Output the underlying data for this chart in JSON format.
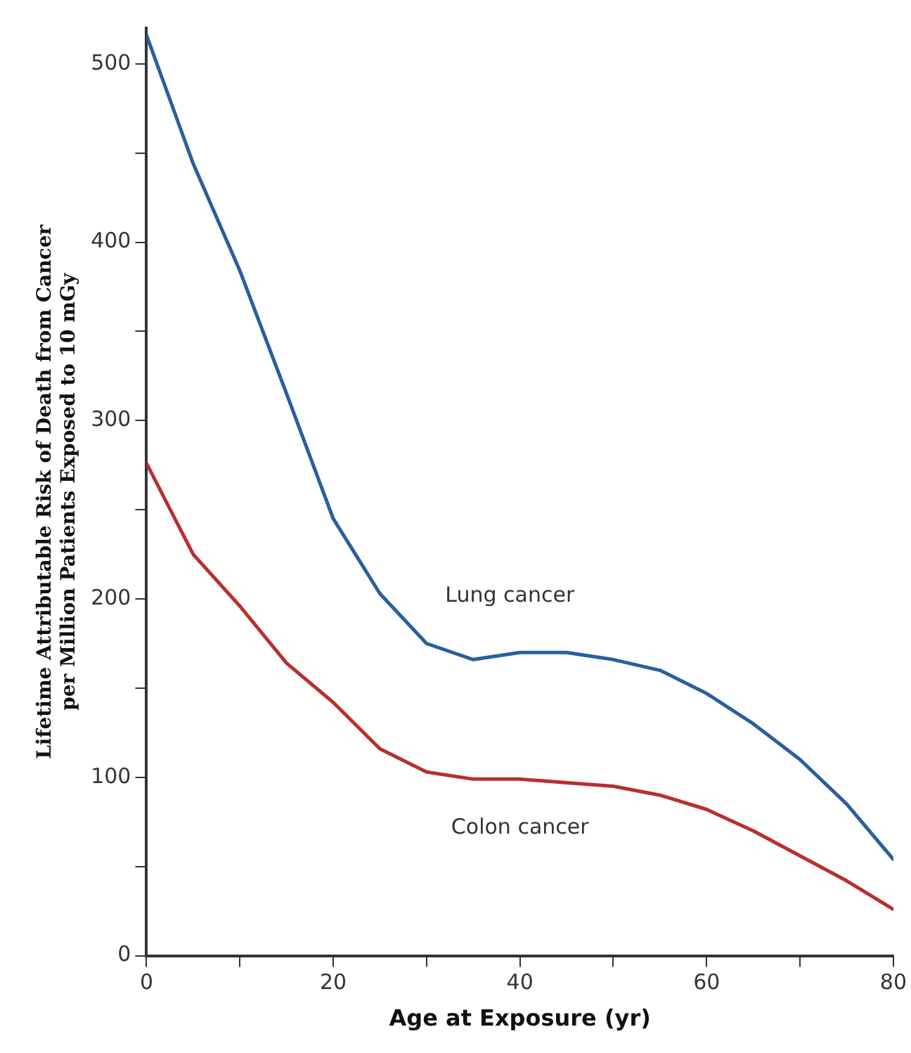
{
  "chart_data": {
    "type": "line",
    "xlabel": "Age at Exposure (yr)",
    "ylabel": "Lifetime Attributable Risk of Death from Cancer\nper Million Patients Exposed to 10 mGy",
    "x": [
      0,
      5,
      10,
      15,
      20,
      25,
      30,
      35,
      40,
      45,
      50,
      55,
      60,
      65,
      70,
      75,
      80
    ],
    "series": [
      {
        "name": "Lung cancer",
        "color": "#2a5f9e",
        "values": [
          516,
          444,
          384,
          315,
          245,
          203,
          175,
          166,
          170,
          170,
          166,
          160,
          147,
          130,
          110,
          85,
          54
        ]
      },
      {
        "name": "Colon cancer",
        "color": "#b8302c",
        "values": [
          276,
          225,
          196,
          164,
          142,
          116,
          103,
          99,
          99,
          97,
          95,
          90,
          82,
          70,
          56,
          42,
          26
        ]
      }
    ],
    "xlim": [
      0,
      80
    ],
    "xticks": [
      0,
      {
        "value": 10,
        "label": null
      },
      20,
      {
        "value": 30,
        "label": null
      },
      40,
      {
        "value": 50,
        "label": null
      },
      60,
      {
        "value": 70,
        "label": null
      },
      80
    ],
    "ylim": [
      0,
      520
    ],
    "yticks": [
      0,
      {
        "value": 50,
        "label": null
      },
      100,
      {
        "value": 150,
        "label": null
      },
      200,
      {
        "value": 250,
        "label": null
      },
      300,
      {
        "value": 350,
        "label": null
      },
      400,
      {
        "value": 450,
        "label": null
      },
      500
    ],
    "grid": false,
    "legend": false,
    "marker": "none",
    "line_style": "solid"
  }
}
